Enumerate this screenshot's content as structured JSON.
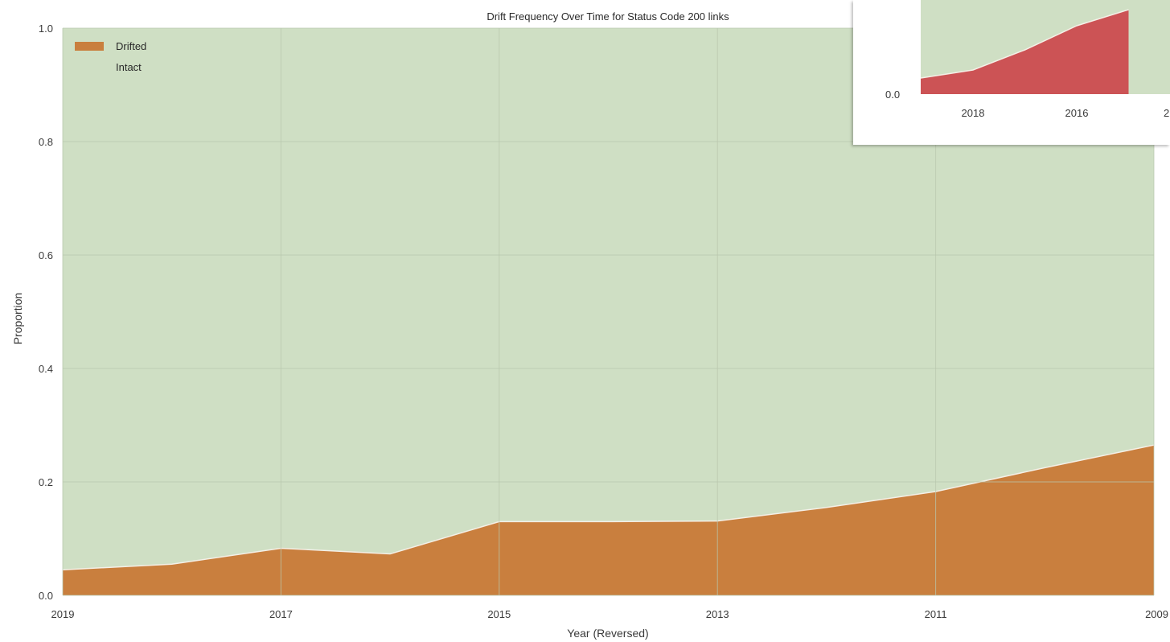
{
  "chart_data": [
    {
      "type": "area",
      "title": "Drift Frequency Over Time for Status Code 200 links",
      "xlabel": "Year (Reversed)",
      "ylabel": "Proportion",
      "x_reversed": true,
      "xlim": [
        2019,
        2009
      ],
      "ylim": [
        0,
        1.0
      ],
      "x_ticks": [
        "2019",
        "2017",
        "2015",
        "2013",
        "2011",
        "2009"
      ],
      "y_ticks": [
        "0.0",
        "0.2",
        "0.4",
        "0.6",
        "0.8",
        "1.0"
      ],
      "grid": true,
      "legend_position": "top-left",
      "stacked": true,
      "x": [
        2019,
        2018,
        2017,
        2016,
        2015,
        2014,
        2013,
        2012,
        2011,
        2010,
        2009
      ],
      "series": [
        {
          "name": "Drifted",
          "color": "#c97f3e",
          "values": [
            0.045,
            0.055,
            0.083,
            0.073,
            0.13,
            0.13,
            0.131,
            0.155,
            0.183,
            0.225,
            0.265
          ]
        },
        {
          "name": "Intact",
          "color": "#cfdfc4",
          "values": [
            0.955,
            0.945,
            0.917,
            0.927,
            0.87,
            0.87,
            0.869,
            0.845,
            0.817,
            0.775,
            0.735
          ]
        }
      ]
    },
    {
      "type": "area",
      "x_reversed": true,
      "x_ticks": [
        "2018",
        "2016",
        "2"
      ],
      "y_ticks": [
        "0.0"
      ],
      "x": [
        2019,
        2018,
        2017,
        2016,
        2015
      ],
      "series": [
        {
          "color": "#cc5355",
          "values": [
            0.04,
            0.06,
            0.11,
            0.17,
            0.21
          ]
        },
        {
          "color": "#cfdfc4",
          "values": [
            0.96,
            0.94,
            0.89,
            0.83,
            0.79
          ]
        }
      ]
    }
  ]
}
